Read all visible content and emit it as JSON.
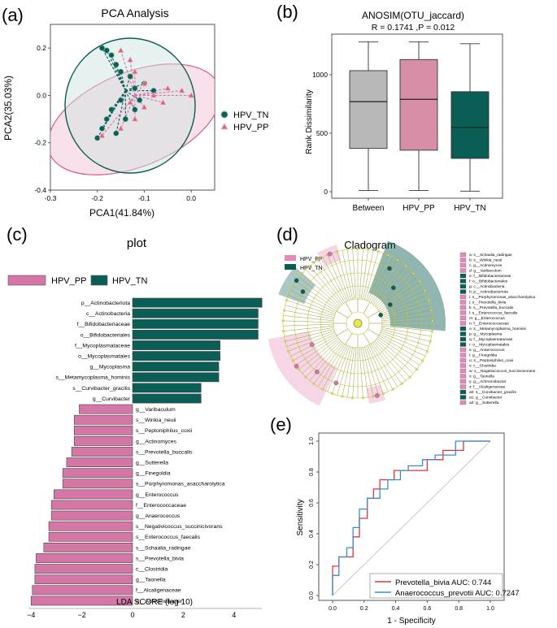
{
  "panel_labels": [
    "(a)",
    "(b)",
    "(c)",
    "(d)",
    "(e)"
  ],
  "colors": {
    "pp": "#d477a7",
    "tn": "#0b5e55",
    "grey": "#b8b8b8",
    "pp_box": "#d68fa6",
    "roc_pp": "#e0333b",
    "roc_tn": "#3b8ccf"
  },
  "chart_data": [
    {
      "id": "pca",
      "type": "scatter",
      "title": "PCA Analysis",
      "xlabel": "PCA1(41.84%)",
      "ylabel": "PCA2(35.03%)",
      "xlim": [
        -0.3,
        0.05
      ],
      "ylim": [
        -0.4,
        0.3
      ],
      "xticks": [
        "-0.3",
        "-0.2",
        "-0.1",
        "0.0"
      ],
      "yticks": [
        "0.2",
        "0.0",
        "-0.2",
        "-0.4"
      ],
      "legend": [
        "HPV_TN",
        "HPV_PP"
      ],
      "series": [
        {
          "name": "HPV_TN",
          "centroid": [
            -0.14,
            0.02
          ],
          "points": [
            [
              -0.19,
              0.2
            ],
            [
              -0.18,
              0.19
            ],
            [
              -0.17,
              0.17
            ],
            [
              -0.16,
              0.13
            ],
            [
              -0.15,
              0.1
            ],
            [
              -0.13,
              0.08
            ],
            [
              -0.12,
              0.03
            ],
            [
              -0.1,
              0.05
            ],
            [
              -0.08,
              0.02
            ],
            [
              -0.15,
              -0.02
            ],
            [
              -0.17,
              -0.06
            ],
            [
              -0.18,
              -0.1
            ],
            [
              -0.19,
              -0.14
            ],
            [
              -0.2,
              -0.18
            ],
            [
              -0.12,
              -0.06
            ],
            [
              -0.11,
              -0.02
            ],
            [
              -0.14,
              -0.1
            ],
            [
              -0.16,
              -0.16
            ]
          ]
        },
        {
          "name": "HPV_PP",
          "centroid": [
            -0.12,
            0.0
          ],
          "points": [
            [
              -0.15,
              0.19
            ],
            [
              -0.13,
              0.15
            ],
            [
              -0.12,
              0.1
            ],
            [
              -0.1,
              0.05
            ],
            [
              -0.05,
              0.03
            ],
            [
              -0.02,
              0.02
            ],
            [
              0.0,
              0.0
            ],
            [
              -0.06,
              -0.03
            ],
            [
              -0.1,
              -0.05
            ],
            [
              -0.12,
              -0.1
            ],
            [
              -0.15,
              -0.14
            ],
            [
              -0.19,
              -0.17
            ],
            [
              -0.13,
              -0.03
            ],
            [
              -0.08,
              0.0
            ]
          ]
        }
      ]
    },
    {
      "id": "anosim",
      "type": "box",
      "title": "ANOSIM(OTU_jaccard)",
      "subtitle": "R = 0.1741 ,P = 0.012",
      "ylabel": "Rank Dissimilarity",
      "ylim": [
        0,
        1300
      ],
      "yticks": [
        0,
        500,
        1000
      ],
      "categories": [
        "Between",
        "HPV_PP",
        "HPV_TN"
      ],
      "boxes": [
        {
          "min": 10,
          "q1": 370,
          "median": 770,
          "q3": 1035,
          "max": 1280
        },
        {
          "min": 10,
          "q1": 355,
          "median": 790,
          "q3": 1130,
          "max": 1280
        },
        {
          "min": 5,
          "q1": 285,
          "median": 550,
          "q3": 855,
          "max": 1265
        }
      ]
    },
    {
      "id": "lefse",
      "type": "bar",
      "title": "plot",
      "xlabel": "LDA SCORE (log 10)",
      "xlim": [
        -4.2,
        5
      ],
      "xticks": [
        -4,
        -2,
        0,
        2,
        4
      ],
      "legend": [
        "HPV_PP",
        "HPV_TN"
      ],
      "categories": [
        "p__Actinobacteriota",
        "c__Actinobacteria",
        "f__Bifidobacteriaceae",
        "o__Bifidobacteriales",
        "f__Mycoplasmataceae",
        "o__Mycoplasmatales",
        "g__Mycoplasma",
        "s__Metamycoplasma_hominis",
        "s__Curvibacter_gracilis",
        "g__Curvibacter",
        "g__Varibaculum",
        "s__Winkia_neuii",
        "s__Peptoniphilus_coxii",
        "g__Actinomyces",
        "s__Prevotella_buccalis",
        "g__Sutterella",
        "g__Finegoldia",
        "s__Porphyromonas_asaccharolytica",
        "g__Enterococcus",
        "f__Enterococcaceae",
        "g__Anaerococcus",
        "s__Negativicoccus_succinicivorans",
        "s__Enterococcus_faecalis",
        "s__Schaalia_radingae",
        "s__Prevotella_bivia",
        "c__Clostridia",
        "g__Taonella",
        "f__Alcaligenaceae",
        "g__Achromobacter"
      ],
      "values": [
        5.1,
        4.95,
        4.95,
        4.95,
        3.45,
        3.45,
        3.4,
        3.4,
        2.7,
        2.7,
        -2.1,
        -2.3,
        -2.3,
        -2.3,
        -2.4,
        -2.6,
        -2.75,
        -2.75,
        -3.1,
        -3.2,
        -3.2,
        -3.3,
        -3.3,
        -3.5,
        -3.8,
        -3.85,
        -3.85,
        -3.95,
        -4.0
      ],
      "groups": [
        "HPV_TN",
        "HPV_TN",
        "HPV_TN",
        "HPV_TN",
        "HPV_TN",
        "HPV_TN",
        "HPV_TN",
        "HPV_TN",
        "HPV_TN",
        "HPV_TN",
        "HPV_PP",
        "HPV_PP",
        "HPV_PP",
        "HPV_PP",
        "HPV_PP",
        "HPV_PP",
        "HPV_PP",
        "HPV_PP",
        "HPV_PP",
        "HPV_PP",
        "HPV_PP",
        "HPV_PP",
        "HPV_PP",
        "HPV_PP",
        "HPV_PP",
        "HPV_PP",
        "HPV_PP",
        "HPV_PP",
        "HPV_PP"
      ]
    },
    {
      "id": "cladogram",
      "type": "other",
      "title": "Cladogram",
      "legend": [
        "HPV_PP",
        "HPV_TN"
      ],
      "key": [
        {
          "label": "a: s__Schaalia_radingae",
          "group": "pp"
        },
        {
          "label": "b: s__Winkia_neuii",
          "group": "pp"
        },
        {
          "label": "c: g__Actinomyces",
          "group": "pp"
        },
        {
          "label": "d: g__Varibaculum",
          "group": "pp"
        },
        {
          "label": "e: f__Bifidobacteriaceae",
          "group": "tn"
        },
        {
          "label": "f: o__Bifidobacteriales",
          "group": "tn"
        },
        {
          "label": "g: c__Actinobacteria",
          "group": "tn"
        },
        {
          "label": "h: p__Actinobacteriota",
          "group": "tn"
        },
        {
          "label": "i: s__Porphyromonas_asaccharolytica",
          "group": "pp"
        },
        {
          "label": "j: s__Prevotella_bivia",
          "group": "pp"
        },
        {
          "label": "k: s__Prevotella_buccalis",
          "group": "pp"
        },
        {
          "label": "l: s__Enterococcus_faecalis",
          "group": "pp"
        },
        {
          "label": "m: g__Enterococcus",
          "group": "pp"
        },
        {
          "label": "n: f__Enterococcaceae",
          "group": "pp"
        },
        {
          "label": "o: s__Metamycoplasma_hominis",
          "group": "tn"
        },
        {
          "label": "p: g__Mycoplasma",
          "group": "tn"
        },
        {
          "label": "q: f__Mycoplasmataceae",
          "group": "tn"
        },
        {
          "label": "r: o__Mycoplasmatales",
          "group": "tn"
        },
        {
          "label": "s: g__Anaerococcus",
          "group": "pp"
        },
        {
          "label": "t: g__Finegoldia",
          "group": "pp"
        },
        {
          "label": "u: s__Peptoniphilus_coxii",
          "group": "pp"
        },
        {
          "label": "v: c__Clostridia",
          "group": "pp"
        },
        {
          "label": "w: s__Negativicoccus_succinicivorans",
          "group": "pp"
        },
        {
          "label": "x: g__Taonella",
          "group": "pp"
        },
        {
          "label": "y: g__Achromobacter",
          "group": "pp"
        },
        {
          "label": "z: f__Alcaligenaceae",
          "group": "pp"
        },
        {
          "label": "a0: s__Curvibacter_gracilis",
          "group": "tn"
        },
        {
          "label": "a1: g__Curvibacter",
          "group": "tn"
        },
        {
          "label": "a2: g__Sutterella",
          "group": "pp"
        }
      ]
    },
    {
      "id": "roc",
      "type": "line",
      "xlabel": "1 - Specificity",
      "ylabel": "Sensitivity",
      "xlim": [
        0,
        1
      ],
      "ylim": [
        0,
        1
      ],
      "ticks": [
        "0.0",
        "0.2",
        "0.4",
        "0.6",
        "0.8",
        "1.0"
      ],
      "series": [
        {
          "name": "Prevotella_bivia AUC: 0.744",
          "key": "roc_pp",
          "x": [
            0,
            0,
            0.04,
            0.04,
            0.13,
            0.13,
            0.17,
            0.17,
            0.22,
            0.22,
            0.26,
            0.26,
            0.3,
            0.3,
            0.39,
            0.39,
            0.43,
            0.43,
            0.52,
            0.52,
            0.6,
            0.6,
            0.7,
            0.7,
            0.83,
            0.83,
            1.0
          ],
          "y": [
            0,
            0.19,
            0.19,
            0.25,
            0.25,
            0.38,
            0.38,
            0.5,
            0.5,
            0.63,
            0.63,
            0.69,
            0.69,
            0.75,
            0.75,
            0.81,
            0.81,
            0.81,
            0.81,
            0.81,
            0.81,
            0.88,
            0.88,
            0.94,
            0.94,
            1.0,
            1.0
          ]
        },
        {
          "name": "Anaerococcus_prevotii AUC: 0.7247",
          "key": "roc_tn",
          "x": [
            0,
            0,
            0.04,
            0.04,
            0.09,
            0.09,
            0.13,
            0.13,
            0.17,
            0.17,
            0.22,
            0.22,
            0.3,
            0.3,
            0.35,
            0.35,
            0.43,
            0.43,
            0.48,
            0.48,
            0.57,
            0.57,
            0.65,
            0.65,
            0.78,
            0.78,
            1.0
          ],
          "y": [
            0,
            0.13,
            0.13,
            0.25,
            0.25,
            0.31,
            0.31,
            0.44,
            0.44,
            0.56,
            0.56,
            0.63,
            0.63,
            0.69,
            0.69,
            0.75,
            0.75,
            0.81,
            0.81,
            0.84,
            0.84,
            0.88,
            0.88,
            0.91,
            0.91,
            1.0,
            1.0
          ]
        }
      ]
    }
  ]
}
